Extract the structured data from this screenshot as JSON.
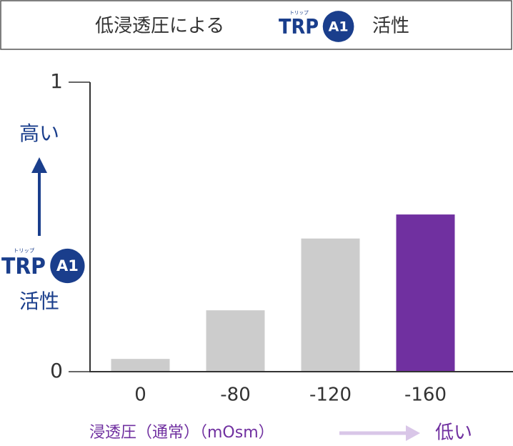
{
  "chart_data": {
    "type": "bar",
    "title": "低浸透圧による",
    "title_suffix": "活性",
    "logo": {
      "text": "TRP",
      "ruby": "トリップ",
      "badge": "A1"
    },
    "y_label_top": "高い",
    "y_label_bottom": "活性",
    "x_label": "浸透圧（通常）（mOsm）",
    "x_label_end": "低い",
    "categories": [
      "0",
      "-80",
      "-120",
      "-160"
    ],
    "values": [
      0.044,
      0.212,
      0.46,
      0.543
    ],
    "colors": [
      "#cccccc",
      "#cccccc",
      "#cccccc",
      "#7030a0"
    ],
    "ylim": [
      0,
      1
    ],
    "yticks": [
      0,
      1
    ]
  }
}
